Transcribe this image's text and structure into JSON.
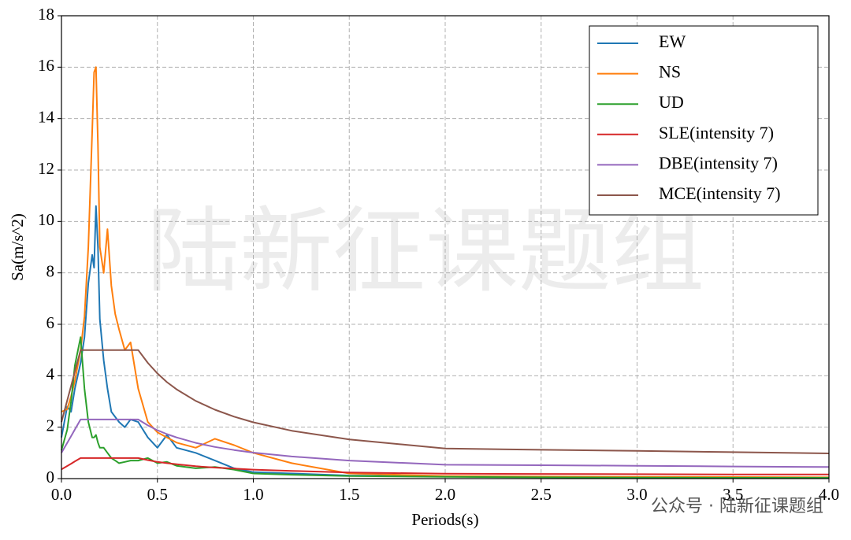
{
  "chart_data": {
    "type": "line",
    "xlabel": "Periods(s)",
    "ylabel": "Sa(m/s^2)",
    "annotations": [
      "陆新征课题组",
      "公众号 · 陆新征课题组"
    ],
    "xlim": [
      0,
      4.0
    ],
    "ylim": [
      0,
      18
    ],
    "xticks": [
      {
        "value": 0,
        "label": "0.0"
      },
      {
        "value": 0.5,
        "label": "0.5"
      },
      {
        "value": 1.0,
        "label": "1.0"
      },
      {
        "value": 1.5,
        "label": "1.5"
      },
      {
        "value": 2.0,
        "label": "2.0"
      },
      {
        "value": 2.5,
        "label": "2.5"
      },
      {
        "value": 3.0,
        "label": "3.0"
      },
      {
        "value": 3.5,
        "label": "3.5"
      },
      {
        "value": 4.0,
        "label": "4.0"
      }
    ],
    "yticks": [
      0,
      2,
      4,
      6,
      8,
      10,
      12,
      14,
      16,
      18
    ],
    "grid": true,
    "legend": "upper right",
    "x": [
      0,
      0.03,
      0.05,
      0.07,
      0.1,
      0.12,
      0.14,
      0.16,
      0.17,
      0.18,
      0.19,
      0.2,
      0.22,
      0.24,
      0.26,
      0.28,
      0.3,
      0.33,
      0.36,
      0.4,
      0.45,
      0.5,
      0.55,
      0.6,
      0.7,
      0.8,
      0.9,
      1.0,
      1.2,
      1.5,
      2.0,
      2.5,
      3.0,
      3.5,
      4.0
    ],
    "series": [
      {
        "name": "EW",
        "color": "#1f77b4",
        "values": [
          1.6,
          2.8,
          2.6,
          3.5,
          4.5,
          5.5,
          7.6,
          8.7,
          8.2,
          10.6,
          9.0,
          6.2,
          4.6,
          3.5,
          2.6,
          2.4,
          2.2,
          2.0,
          2.3,
          2.2,
          1.6,
          1.2,
          1.7,
          1.2,
          1.0,
          0.7,
          0.4,
          0.25,
          0.2,
          0.12,
          0.08,
          0.06,
          0.05,
          0.04,
          0.03
        ]
      },
      {
        "name": "NS",
        "color": "#ff7f0e",
        "values": [
          2.6,
          2.7,
          3.2,
          3.8,
          5.0,
          6.3,
          9.0,
          13.5,
          15.8,
          16.0,
          13.0,
          9.0,
          8.0,
          9.7,
          7.5,
          6.4,
          5.8,
          5.0,
          5.3,
          3.5,
          2.2,
          1.8,
          1.6,
          1.4,
          1.2,
          1.55,
          1.3,
          1.0,
          0.6,
          0.2,
          0.1,
          0.08,
          0.07,
          0.06,
          0.05
        ]
      },
      {
        "name": "UD",
        "color": "#2ca02c",
        "values": [
          1.1,
          1.9,
          3.0,
          4.4,
          5.5,
          3.5,
          2.2,
          1.6,
          1.6,
          1.7,
          1.4,
          1.2,
          1.2,
          1.0,
          0.8,
          0.7,
          0.6,
          0.65,
          0.7,
          0.7,
          0.8,
          0.6,
          0.65,
          0.5,
          0.4,
          0.45,
          0.35,
          0.2,
          0.15,
          0.1,
          0.07,
          0.05,
          0.04,
          0.03,
          0.03
        ]
      },
      {
        "name": "SLE(intensity 7)",
        "color": "#d62728",
        "values": [
          0.36,
          0.49,
          0.58,
          0.67,
          0.8,
          0.8,
          0.8,
          0.8,
          0.8,
          0.8,
          0.8,
          0.8,
          0.8,
          0.8,
          0.8,
          0.8,
          0.8,
          0.8,
          0.8,
          0.8,
          0.72,
          0.65,
          0.6,
          0.56,
          0.48,
          0.43,
          0.39,
          0.35,
          0.3,
          0.24,
          0.19,
          0.18,
          0.17,
          0.16,
          0.16
        ]
      },
      {
        "name": "DBE(intensity 7)",
        "color": "#9467bd",
        "values": [
          1.0,
          1.39,
          1.65,
          1.91,
          2.3,
          2.3,
          2.3,
          2.3,
          2.3,
          2.3,
          2.3,
          2.3,
          2.3,
          2.3,
          2.3,
          2.3,
          2.3,
          2.3,
          2.3,
          2.3,
          2.07,
          1.88,
          1.73,
          1.6,
          1.39,
          1.23,
          1.11,
          1.01,
          0.86,
          0.7,
          0.54,
          0.52,
          0.5,
          0.47,
          0.45
        ]
      },
      {
        "name": "MCE(intensity 7)",
        "color": "#8c564b",
        "values": [
          2.2,
          3.04,
          3.6,
          4.16,
          5.0,
          5.0,
          5.0,
          5.0,
          5.0,
          5.0,
          5.0,
          5.0,
          5.0,
          5.0,
          5.0,
          5.0,
          5.0,
          5.0,
          5.0,
          5.0,
          4.5,
          4.09,
          3.75,
          3.47,
          3.02,
          2.68,
          2.41,
          2.19,
          1.86,
          1.52,
          1.17,
          1.12,
          1.08,
          1.03,
          0.98
        ]
      }
    ]
  }
}
